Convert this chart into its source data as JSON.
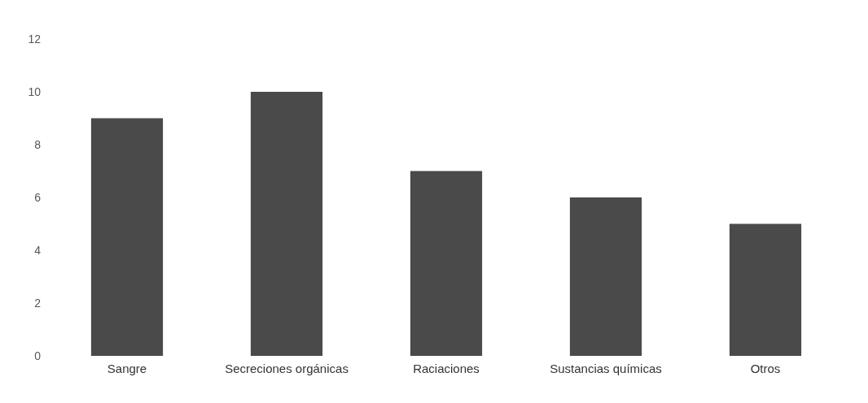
{
  "chart_data": {
    "type": "bar",
    "categories": [
      "Sangre",
      "Secreciones orgánicas",
      "Raciaciones",
      "Sustancias químicas",
      "Otros"
    ],
    "values": [
      9,
      10,
      7,
      6,
      5
    ],
    "color": "#4a4a4a",
    "ylim": [
      0,
      12
    ],
    "yticks": [
      0,
      2,
      4,
      6,
      8,
      10,
      12
    ],
    "grid": false
  }
}
